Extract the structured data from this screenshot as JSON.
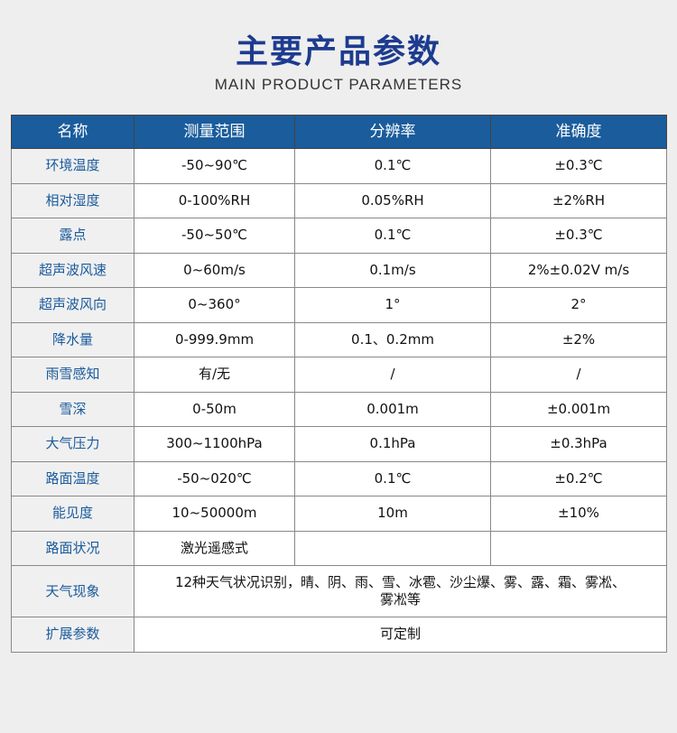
{
  "title": "主要产品参数",
  "subtitle": "MAIN PRODUCT PARAMETERS",
  "headers": [
    "名称",
    "测量范围",
    "分辨率",
    "准确度"
  ],
  "rows": [
    [
      "环境温度",
      "-50~90℃",
      "0.1℃",
      "±0.3℃"
    ],
    [
      "相对湿度",
      "0-100%RH",
      "0.05%RH",
      "±2%RH"
    ],
    [
      "露点",
      "-50~50℃",
      "0.1℃",
      "±0.3℃"
    ],
    [
      "超声波风速",
      "0~60m/s",
      "0.1m/s",
      "2%±0.02V m/s"
    ],
    [
      "超声波风向",
      "0~360°",
      "1°",
      "2°"
    ],
    [
      "降水量",
      "0-999.9mm",
      "0.1、0.2mm",
      "±2%"
    ],
    [
      "雨雪感知",
      "有/无",
      "/",
      "/"
    ],
    [
      "雪深",
      "0-50m",
      "0.001m",
      "±0.001m"
    ],
    [
      "大气压力",
      "300~1100hPa",
      "0.1hPa",
      "±0.3hPa"
    ],
    [
      "路面温度",
      "-50~020℃",
      "0.1℃",
      "±0.2℃"
    ],
    [
      "能见度",
      "10~50000m",
      "10m",
      "±10%"
    ],
    [
      "路面状况",
      "激光遥感式",
      "",
      ""
    ]
  ],
  "weather": {
    "name": "天气现象",
    "line1": "12种天气状况识别，晴、阴、雨、雪、冰雹、沙尘爆、雾、露、霜、雾凇、",
    "line2": "雾凇等"
  },
  "extend": {
    "name": "扩展参数",
    "value": "可定制"
  }
}
